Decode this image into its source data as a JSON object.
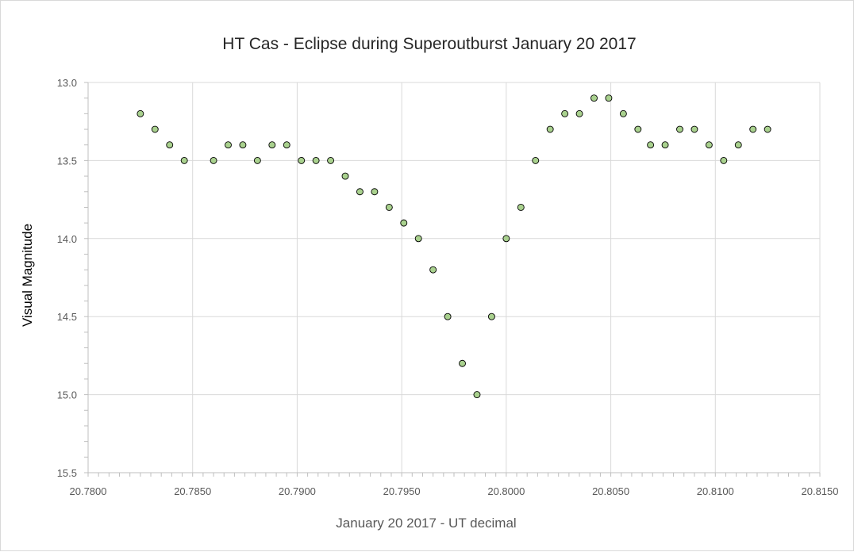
{
  "chart_data": {
    "type": "scatter",
    "title": "HT Cas - Eclipse during Superoutburst January 20 2017",
    "xlabel": "January 20 2017 - UT decimal",
    "ylabel": "Visual Magnitude",
    "xlim": [
      20.78,
      20.815
    ],
    "ylim": [
      13.0,
      15.5
    ],
    "y_reversed": true,
    "x_ticks": [
      "20.7800",
      "20.7850",
      "20.7900",
      "20.7950",
      "20.8000",
      "20.8050",
      "20.8100",
      "20.8150"
    ],
    "y_ticks": [
      "13.0",
      "13.5",
      "14.0",
      "14.5",
      "15.0",
      "15.5"
    ],
    "grid": true,
    "legend": "none",
    "marker_fill": "#a9d18e",
    "marker_edge": "#000000",
    "gridline_color": "#d9d9d9",
    "points": [
      [
        20.7825,
        13.2
      ],
      [
        20.7832,
        13.3
      ],
      [
        20.7839,
        13.4
      ],
      [
        20.7846,
        13.5
      ],
      [
        20.786,
        13.5
      ],
      [
        20.7867,
        13.4
      ],
      [
        20.7874,
        13.4
      ],
      [
        20.7881,
        13.5
      ],
      [
        20.7888,
        13.4
      ],
      [
        20.7895,
        13.4
      ],
      [
        20.7902,
        13.5
      ],
      [
        20.7909,
        13.5
      ],
      [
        20.7916,
        13.5
      ],
      [
        20.7923,
        13.6
      ],
      [
        20.793,
        13.7
      ],
      [
        20.7937,
        13.7
      ],
      [
        20.7944,
        13.8
      ],
      [
        20.7951,
        13.9
      ],
      [
        20.7958,
        14.0
      ],
      [
        20.7965,
        14.2
      ],
      [
        20.7972,
        14.5
      ],
      [
        20.7979,
        14.8
      ],
      [
        20.7986,
        15.0
      ],
      [
        20.7993,
        14.5
      ],
      [
        20.8,
        14.0
      ],
      [
        20.8007,
        13.8
      ],
      [
        20.8014,
        13.5
      ],
      [
        20.8021,
        13.3
      ],
      [
        20.8028,
        13.2
      ],
      [
        20.8035,
        13.2
      ],
      [
        20.8042,
        13.1
      ],
      [
        20.8049,
        13.1
      ],
      [
        20.8056,
        13.2
      ],
      [
        20.8063,
        13.3
      ],
      [
        20.8069,
        13.4
      ],
      [
        20.8076,
        13.4
      ],
      [
        20.8083,
        13.3
      ],
      [
        20.809,
        13.3
      ],
      [
        20.8097,
        13.4
      ],
      [
        20.8104,
        13.5
      ],
      [
        20.8111,
        13.4
      ],
      [
        20.8118,
        13.3
      ],
      [
        20.8125,
        13.3
      ]
    ]
  }
}
